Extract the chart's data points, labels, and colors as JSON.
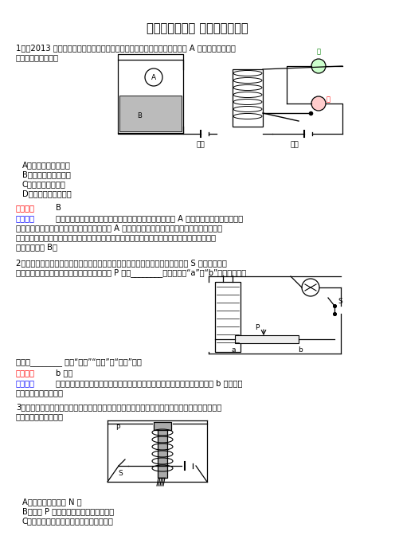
{
  "title": "初三物理电磁铁 电磁继电器试题",
  "background_color": "#ffffff",
  "text_color": "#000000",
  "answer_color": "#ff0000",
  "explain_color": "#0000ff",
  "q1_line1": "1．（2013 天津）下图是一种水位自动报警器的原理图，当水位到达金属块 A 时（一般的水能导",
  "q1_line2": "电），电路中（　）",
  "q1_options": [
    "A．綦灯亮，红灯不亮",
    "B．红灯亮，綦灯不亮",
    "C．红灯和綦灯都亮",
    "D．红灯和綦灯都不亮"
  ],
  "ans1_label": "【答案】",
  "ans1_val": "B",
  "exp1_label": "【解析】",
  "exp1_lines": [
    "容器中水的高低相当于控制电路的开关，当水位没有到达 A 时，电磁铁没有磁性，此时",
    "衡铁与綦灯的触点接触，綦灯亮；当水位到达 A 时，控制电路接通，电磁铁有磁性，衡铁就会在",
    "磁力吸引的作用下与綦灯的触点断开，与红灯的触点接触使红灯所在电路接通，此时綦灯不亮，",
    "红灯亮，故选 B．"
  ],
  "q2_line1": "2．小芳用漆包线在笔杆上绕制了一只螺线管，接入如图所示的电路中，闭合开关 S 后，要使螺线",
  "q2_line2": "管吸引大头针的数量增多，滑动变阻器的滑片 P 应向________端移动（填“a”或“b”），此时灯泡",
  "q2_line3": "的亮度________ （填“变亮”“变暗”或“不变”）．",
  "ans2_label": "【答案】",
  "ans2_val": "b 变亮",
  "exp2_label": "【解析】",
  "exp2_lines": [
    "要使电磁铁的磁性增强，可使电路中的电流变大，应使滑动变阻器的滑片自 b 端移动，",
    "此时灯泡的亮度变亮．"
  ],
  "q3_line1": "3．张平同学用漆包线在一颗大铁钉上绕若干圈，做成了简易电磁铁，然后按下图所示次连入电路",
  "q3_line2": "中，接通电路后（　）",
  "q3_options": [
    "A．大铁钉的下端是 N 极",
    "B．滑片 P 向右移动，电磁铁的磁性减弱",
    "C．增加绕线圈的匹数，电磁铁的磁性减弱"
  ]
}
